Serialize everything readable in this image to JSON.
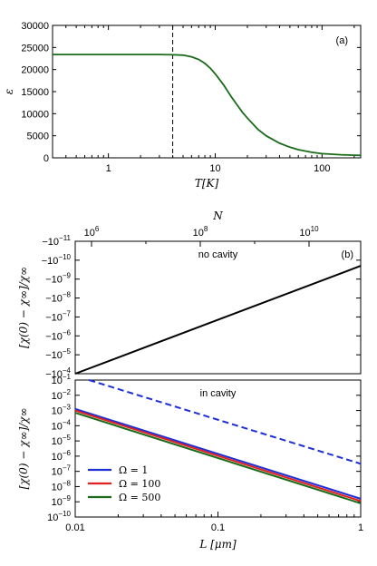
{
  "chart_data": [
    {
      "panel": "(a)",
      "type": "line",
      "xlabel": "T[K]",
      "ylabel": "ε",
      "x_scale": "log",
      "xlim": [
        0.3,
        230
      ],
      "ylim": [
        0,
        30000
      ],
      "x_ticks": [
        {
          "value": 1,
          "label": "1"
        },
        {
          "value": 10,
          "label": "10"
        },
        {
          "value": 100,
          "label": "100"
        }
      ],
      "y_ticks": [
        {
          "value": 0,
          "label": "0"
        },
        {
          "value": 5000,
          "label": "5000"
        },
        {
          "value": 10000,
          "label": "10000"
        },
        {
          "value": 15000,
          "label": "15000"
        },
        {
          "value": 20000,
          "label": "20000"
        },
        {
          "value": 25000,
          "label": "25000"
        },
        {
          "value": 30000,
          "label": "30000"
        }
      ],
      "vline_x": 4,
      "series": [
        {
          "color": "#1a6b1a",
          "x": [
            0.3,
            1,
            2,
            3,
            4,
            5,
            6,
            7,
            8,
            9,
            10,
            12,
            14,
            16,
            18,
            20,
            25,
            30,
            40,
            50,
            60,
            80,
            100,
            150,
            200,
            230
          ],
          "y": [
            23400,
            23400,
            23400,
            23400,
            23350,
            23250,
            22900,
            22300,
            21400,
            20300,
            19000,
            16500,
            14000,
            12000,
            10300,
            9000,
            6500,
            5000,
            3300,
            2400,
            1850,
            1250,
            950,
            700,
            600,
            550
          ]
        }
      ]
    },
    {
      "panel": "(b)",
      "type": "line",
      "annotation": "no cavity",
      "ylabel": "[χ(0) − χ∞]/χ∞",
      "top_xlabel": "N",
      "top_ticks": [
        {
          "exp": 6,
          "label_base": "10",
          "label_exp": "6"
        },
        {
          "exp": 8,
          "label_base": "10",
          "label_exp": "8"
        },
        {
          "exp": 10,
          "label_base": "10",
          "label_exp": "10"
        }
      ],
      "y_ticks": [
        {
          "exp": -11,
          "label": "−10",
          "sup": "−11"
        },
        {
          "exp": -10,
          "label": "−10",
          "sup": "−10"
        },
        {
          "exp": -9,
          "label": "−10",
          "sup": "−9"
        },
        {
          "exp": -8,
          "label": "−10",
          "sup": "−8"
        },
        {
          "exp": -7,
          "label": "−10",
          "sup": "−7"
        },
        {
          "exp": -6,
          "label": "−10",
          "sup": "−6"
        },
        {
          "exp": -5,
          "label": "−10",
          "sup": "−5"
        },
        {
          "exp": -4,
          "label": "−10",
          "sup": "−4"
        }
      ],
      "series": [
        {
          "color": "#000000",
          "x": [
            0.01,
            1
          ],
          "y_exp": [
            -4.0,
            -9.7
          ]
        }
      ]
    },
    {
      "panel": "in cavity",
      "type": "line",
      "annotation": "in cavity",
      "xlabel": "L [μm]",
      "ylabel": "[χ(0) − χ∞]/χ∞",
      "x_scale": "log",
      "xlim": [
        0.01,
        1
      ],
      "y_scale": "log",
      "ylim_exp": [
        -10,
        -1
      ],
      "x_ticks": [
        {
          "value": 0.01,
          "label": "0.01"
        },
        {
          "value": 0.1,
          "label": "0.1"
        },
        {
          "value": 1,
          "label": "1"
        }
      ],
      "y_ticks": [
        {
          "exp": -1,
          "label": "10",
          "sup": "−1"
        },
        {
          "exp": -2,
          "label": "10",
          "sup": "−2"
        },
        {
          "exp": -3,
          "label": "10",
          "sup": "−3"
        },
        {
          "exp": -4,
          "label": "10",
          "sup": "−4"
        },
        {
          "exp": -5,
          "label": "10",
          "sup": "−5"
        },
        {
          "exp": -6,
          "label": "10",
          "sup": "−6"
        },
        {
          "exp": -7,
          "label": "10",
          "sup": "−7"
        },
        {
          "exp": -8,
          "label": "10",
          "sup": "−8"
        },
        {
          "exp": -9,
          "label": "10",
          "sup": "−9"
        },
        {
          "exp": -10,
          "label": "10",
          "sup": "−10"
        }
      ],
      "series": [
        {
          "name": "Ω = 1",
          "color": "#1f2fd6",
          "x": [
            0.01,
            1
          ],
          "y_exp": [
            -2.9,
            -8.8
          ],
          "style": "solid"
        },
        {
          "name": "Ω = 100",
          "color": "#e01f1f",
          "x": [
            0.01,
            1
          ],
          "y_exp": [
            -3.0,
            -8.95
          ],
          "style": "solid"
        },
        {
          "name": "Ω = 500",
          "color": "#1a6b1a",
          "x": [
            0.01,
            1
          ],
          "y_exp": [
            -3.15,
            -9.1
          ],
          "style": "solid"
        },
        {
          "color": "#1f2fd6",
          "x": [
            0.0125,
            1
          ],
          "y_exp": [
            -1.0,
            -6.5
          ],
          "style": "dashed"
        }
      ],
      "legend_position": "bottom-left"
    }
  ]
}
